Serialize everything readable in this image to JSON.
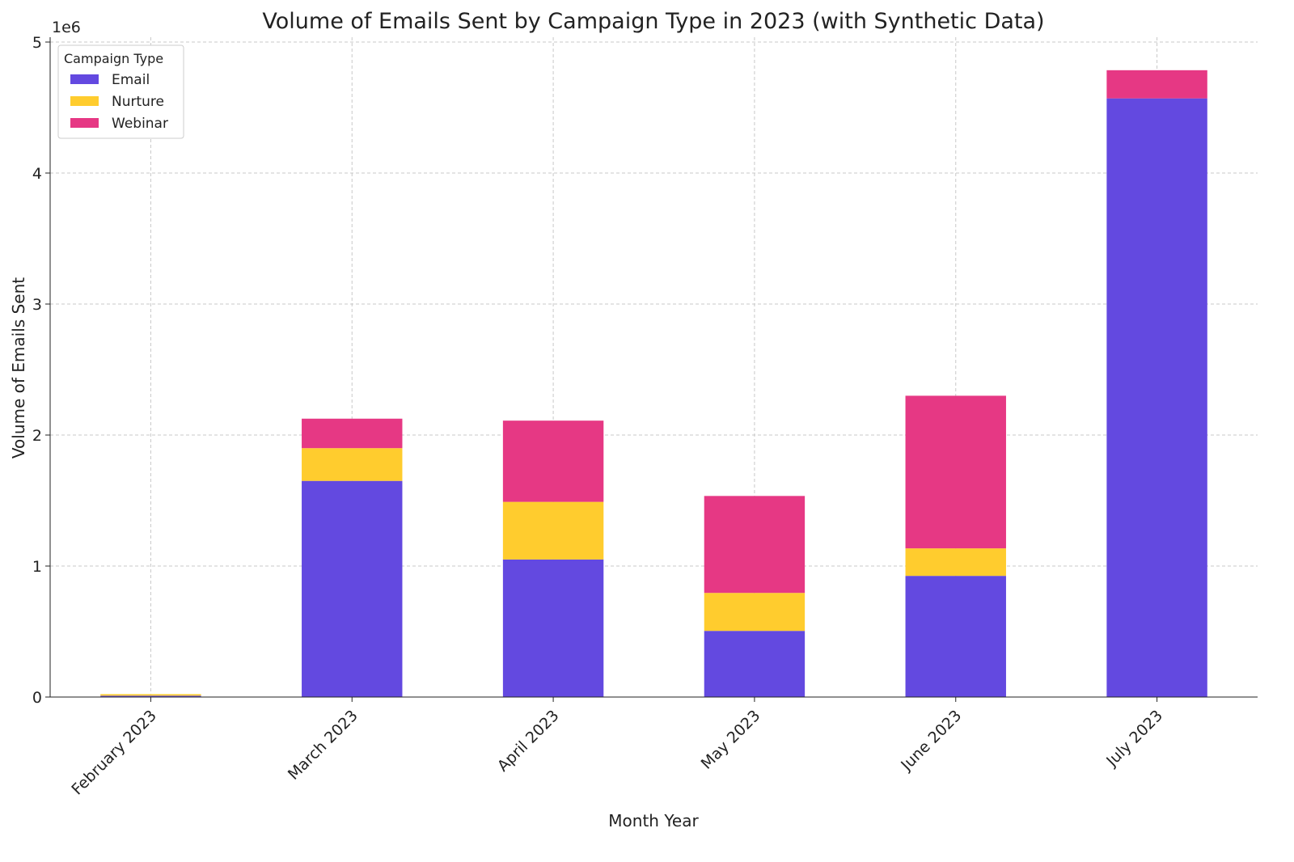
{
  "chart_data": {
    "type": "bar",
    "stacked": true,
    "title": "Volume of Emails Sent by Campaign Type in 2023 (with Synthetic Data)",
    "xlabel": "Month Year",
    "ylabel": "Volume of Emails Sent",
    "y_offset_label": "1e6",
    "ylim": [
      0,
      5000000
    ],
    "yticks": [
      0,
      1000000,
      2000000,
      3000000,
      4000000,
      5000000
    ],
    "ytick_labels": [
      "0",
      "1",
      "2",
      "3",
      "4",
      "5"
    ],
    "grid": true,
    "legend": {
      "title": "Campaign Type",
      "placement": "top-left"
    },
    "categories": [
      "February 2023",
      "March 2023",
      "April 2023",
      "May 2023",
      "June 2023",
      "July 2023"
    ],
    "series": [
      {
        "name": "Email",
        "color": "#6349e0",
        "values": [
          10000,
          1650000,
          1050000,
          505000,
          925000,
          4570000
        ]
      },
      {
        "name": "Nurture",
        "color": "#ffcc2e",
        "values": [
          12000,
          250000,
          440000,
          290000,
          210000,
          0
        ]
      },
      {
        "name": "Webinar",
        "color": "#e63884",
        "values": [
          0,
          225000,
          620000,
          740000,
          1165000,
          215000
        ]
      }
    ]
  }
}
